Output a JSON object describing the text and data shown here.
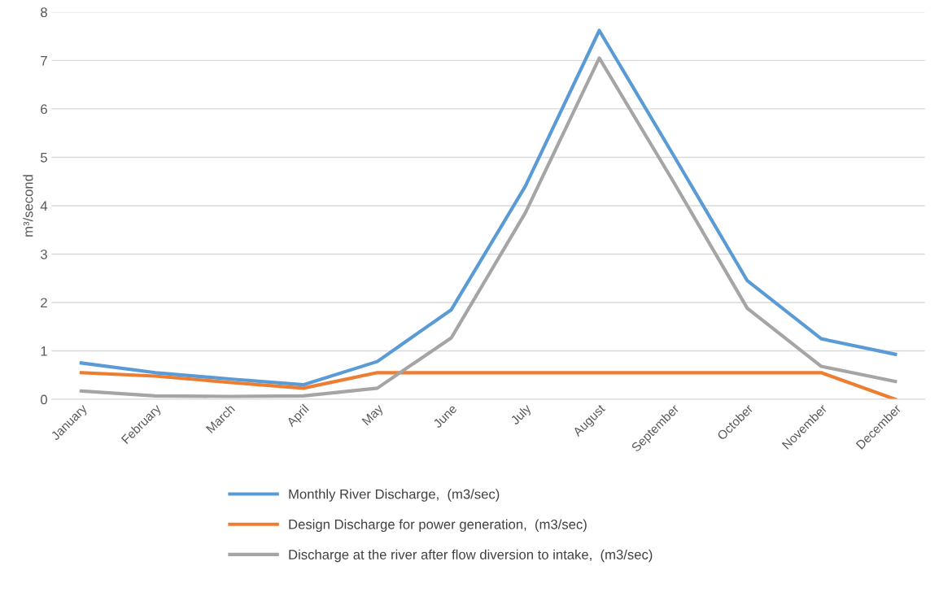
{
  "chart_data": {
    "type": "line",
    "ylabel": "m³/second",
    "categories": [
      "January",
      "February",
      "March",
      "April",
      "May",
      "June",
      "July",
      "August",
      "September",
      "October",
      "November",
      "December"
    ],
    "series": [
      {
        "name": "Monthly River Discharge,  (m3/sec)",
        "color": "#5b9bd5",
        "values": [
          0.75,
          0.55,
          0.42,
          0.3,
          0.78,
          1.85,
          4.4,
          7.62,
          5.05,
          2.45,
          1.25,
          0.93
        ]
      },
      {
        "name": "Design Discharge for power generation,  (m3/sec)",
        "color": "#ed7d31",
        "values": [
          0.55,
          0.48,
          0.35,
          0.23,
          0.55,
          0.55,
          0.55,
          0.55,
          0.55,
          0.55,
          0.55,
          0.0
        ]
      },
      {
        "name": "Discharge at the river after flow diversion to intake,  (m3/sec)",
        "color": "#a5a5a5",
        "values": [
          0.17,
          0.07,
          0.06,
          0.07,
          0.23,
          1.27,
          3.85,
          7.05,
          4.5,
          1.88,
          0.68,
          0.37
        ]
      }
    ],
    "ylim": [
      0,
      8
    ],
    "yticks": [
      0,
      1,
      2,
      3,
      4,
      5,
      6,
      7,
      8
    ],
    "grid": "y",
    "legend": "bottom",
    "marker": "none",
    "line_style": "solid"
  }
}
